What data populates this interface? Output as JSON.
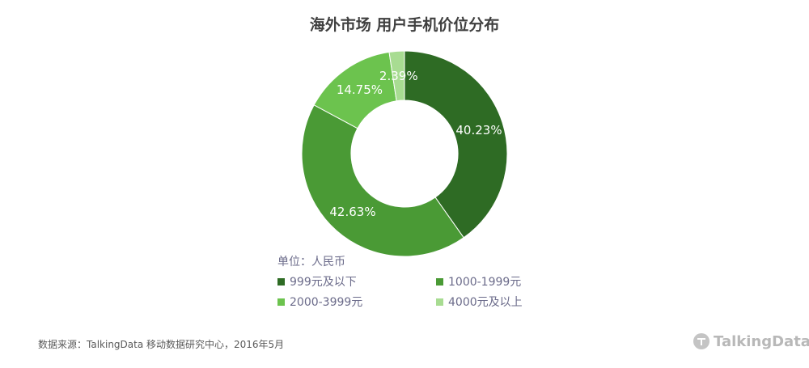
{
  "title": "海外市场 用户手机价位分布",
  "unit_label": "单位：人民币",
  "source": "数据来源：TalkingData 移动数据研究中心，2016年5月",
  "brand": "TalkingData",
  "colors": {
    "s1": "#2e6b24",
    "s2": "#4a9a35",
    "s3": "#6cc34e",
    "s4": "#a8dc92"
  },
  "chart_data": {
    "type": "pie",
    "donut": true,
    "categories": [
      "999元及以下",
      "1000-1999元",
      "2000-3999元",
      "4000元及以上"
    ],
    "values": [
      40.23,
      42.63,
      14.75,
      2.39
    ],
    "labels": [
      "40.23%",
      "42.63%",
      "14.75%",
      "2.39%"
    ],
    "title": "海外市场 用户手机价位分布",
    "legend_position": "bottom"
  }
}
